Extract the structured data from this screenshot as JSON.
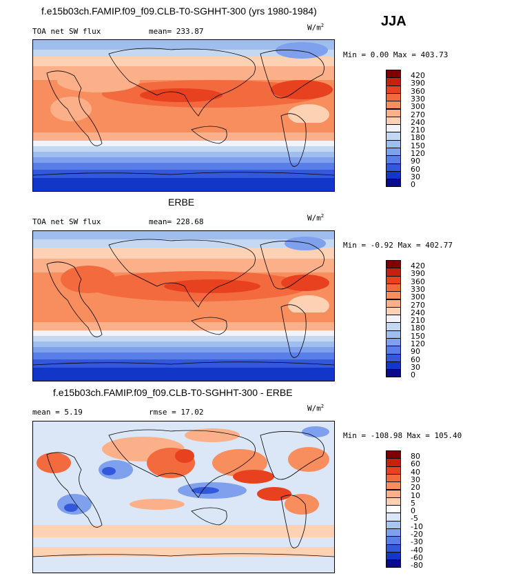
{
  "season": "JJA",
  "panels": [
    {
      "title": "f.e15b03ch.FAMIP.f09_f09.CLB-T0-SGHHT-300 (yrs 1980-1984)",
      "left_label": "TOA net SW flux",
      "stat_label": "mean= 233.87",
      "units": "W/m",
      "units_sup": "2",
      "minmax": "Min =   0.00 Max = 403.73",
      "levels": [
        "420",
        "390",
        "360",
        "330",
        "300",
        "270",
        "240",
        "210",
        "180",
        "150",
        "120",
        "90",
        "60",
        "30",
        "0"
      ],
      "colors": [
        "#800000",
        "#c8200e",
        "#e8411f",
        "#f26a3e",
        "#f88d5e",
        "#fbb089",
        "#fdd2b4",
        "#f1f3f8",
        "#c4d8f2",
        "#9fbeee",
        "#7fa0ec",
        "#5a7ee8",
        "#3458dc",
        "#1236c8",
        "#0a0a8a"
      ]
    },
    {
      "title": "ERBE",
      "left_label": "TOA net SW flux",
      "stat_label": "mean= 228.68",
      "units": "W/m",
      "units_sup": "2",
      "minmax": "Min =  -0.92 Max = 402.77",
      "levels": [
        "420",
        "390",
        "360",
        "330",
        "300",
        "270",
        "240",
        "210",
        "180",
        "150",
        "120",
        "90",
        "60",
        "30",
        "0"
      ],
      "colors": [
        "#800000",
        "#c8200e",
        "#e8411f",
        "#f26a3e",
        "#f88d5e",
        "#fbb089",
        "#fdd2b4",
        "#f1f3f8",
        "#c4d8f2",
        "#9fbeee",
        "#7fa0ec",
        "#5a7ee8",
        "#3458dc",
        "#1236c8",
        "#0a0a8a"
      ]
    },
    {
      "title": "f.e15b03ch.FAMIP.f09_f09.CLB-T0-SGHHT-300 - ERBE",
      "left_label": "mean =    5.19",
      "stat_label": "rmse =   17.02",
      "units": "W/m",
      "units_sup": "2",
      "minmax": "Min = -108.98 Max = 105.40",
      "levels": [
        "80",
        "60",
        "40",
        "30",
        "20",
        "10",
        "5",
        "0",
        "-5",
        "-10",
        "-20",
        "-30",
        "-40",
        "-60",
        "-80"
      ],
      "colors": [
        "#800000",
        "#c8200e",
        "#e8411f",
        "#f26a3e",
        "#f88d5e",
        "#fbb089",
        "#fdd2b4",
        "#ffffff",
        "#dbe6f7",
        "#aac4f0",
        "#7fa0ec",
        "#5a7ee8",
        "#3458dc",
        "#1236c8",
        "#0a0a8a"
      ]
    }
  ]
}
